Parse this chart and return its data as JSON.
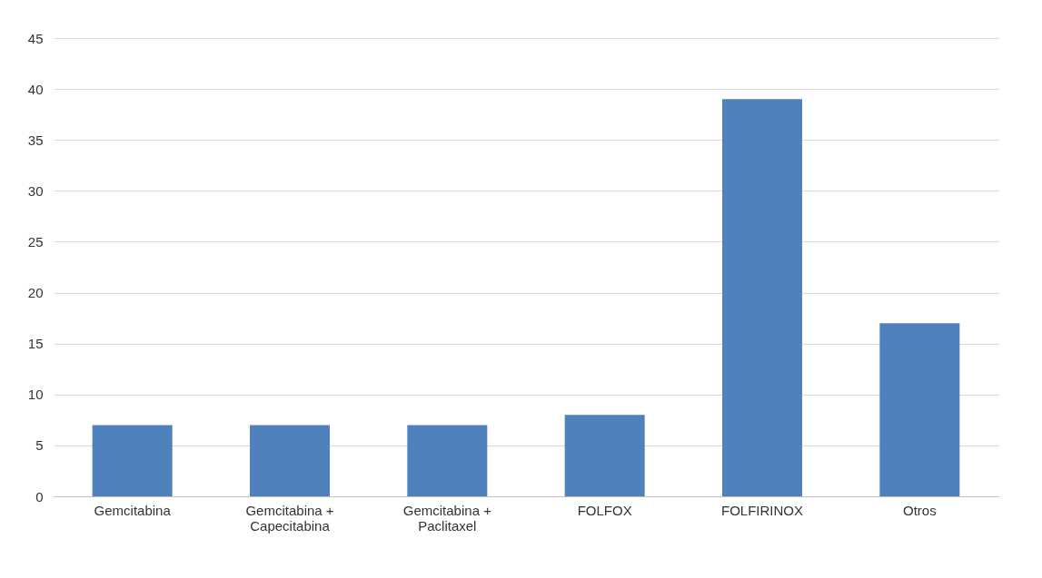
{
  "chart_data": {
    "type": "bar",
    "categories": [
      "Gemcitabina",
      "Gemcitabina +\nCapecitabina",
      "Gemcitabina +\nPaclitaxel",
      "FOLFOX",
      "FOLFIRINOX",
      "Otros"
    ],
    "values": [
      7,
      7,
      7,
      8,
      39,
      17
    ],
    "color": "#4f81bd",
    "ylim": [
      0,
      45
    ],
    "yticks": [
      0,
      5,
      10,
      15,
      20,
      25,
      30,
      35,
      40,
      45
    ],
    "grid": "y"
  }
}
